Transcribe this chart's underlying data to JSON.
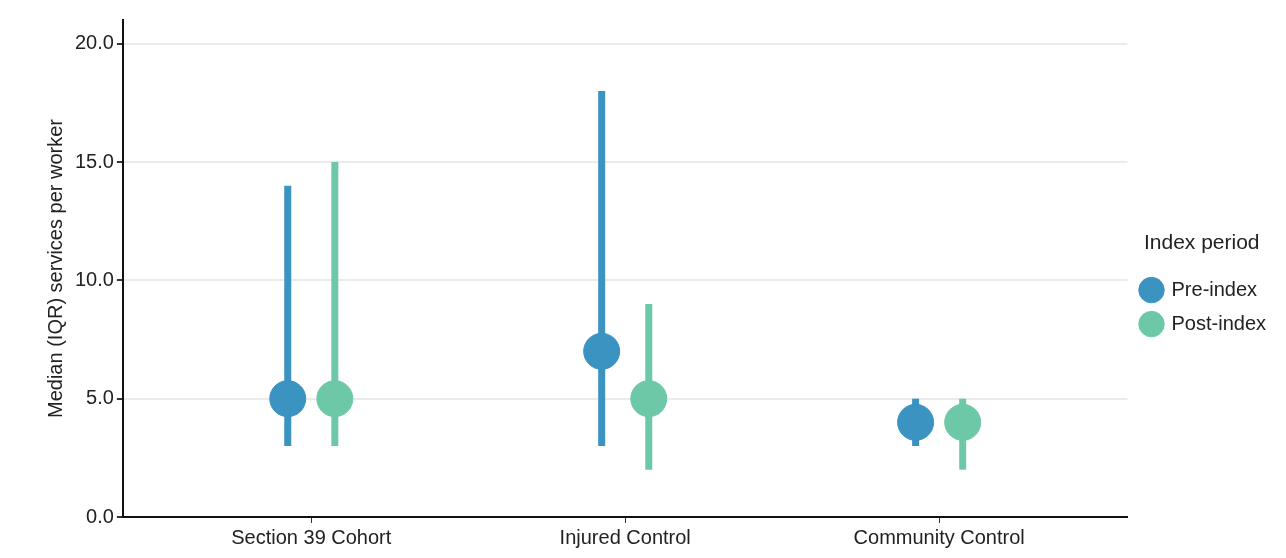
{
  "chart_data": {
    "type": "scatter",
    "ylabel": "Median (IQR) services per worker",
    "legend_title": "Index period",
    "categories": [
      "Section 39 Cohort",
      "Injured Control",
      "Community Control"
    ],
    "series": [
      {
        "name": "Pre-index",
        "color": "#3a93c0",
        "values": [
          5,
          7,
          4
        ],
        "errors": [
          [
            3,
            14
          ],
          [
            3,
            18
          ],
          [
            3,
            5
          ]
        ]
      },
      {
        "name": "Post-index",
        "color": "#6dc8a8",
        "values": [
          5,
          5,
          4
        ],
        "errors": [
          [
            3,
            15
          ],
          [
            2,
            9
          ],
          [
            2,
            5
          ]
        ]
      }
    ],
    "ylim": [
      0,
      21
    ],
    "yticks": [
      {
        "value": 0,
        "label": "0.0"
      },
      {
        "value": 5,
        "label": "5.0"
      },
      {
        "value": 10,
        "label": "10.0"
      },
      {
        "value": 15,
        "label": "15.0"
      },
      {
        "value": 20,
        "label": "20.0"
      }
    ],
    "grid": "y",
    "legend": "right",
    "marker": "circle"
  }
}
